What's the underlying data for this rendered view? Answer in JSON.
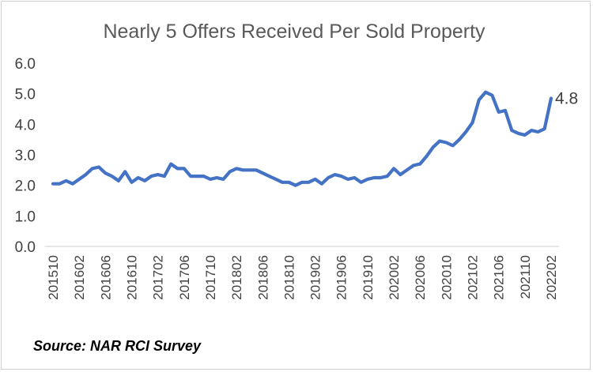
{
  "chart_data": {
    "type": "line",
    "title": "Nearly 5 Offers Received Per Sold Property",
    "xlabel": "",
    "ylabel": "",
    "ylim": [
      0,
      6
    ],
    "yticks": [
      "0.0",
      "1.0",
      "2.0",
      "3.0",
      "4.0",
      "5.0",
      "6.0"
    ],
    "xtick_labels": [
      "201510",
      "201602",
      "201606",
      "201610",
      "201702",
      "201706",
      "201710",
      "201802",
      "201806",
      "201810",
      "201902",
      "201906",
      "201910",
      "202002",
      "202006",
      "202010",
      "202102",
      "202106",
      "202110",
      "202202"
    ],
    "x": [
      "201510",
      "201511",
      "201512",
      "201601",
      "201602",
      "201603",
      "201604",
      "201605",
      "201606",
      "201607",
      "201608",
      "201609",
      "201610",
      "201611",
      "201612",
      "201701",
      "201702",
      "201703",
      "201704",
      "201705",
      "201706",
      "201707",
      "201708",
      "201709",
      "201710",
      "201711",
      "201712",
      "201801",
      "201802",
      "201803",
      "201804",
      "201805",
      "201806",
      "201807",
      "201808",
      "201809",
      "201810",
      "201811",
      "201812",
      "201901",
      "201902",
      "201903",
      "201904",
      "201905",
      "201906",
      "201907",
      "201908",
      "201909",
      "201910",
      "201911",
      "201912",
      "202001",
      "202002",
      "202003",
      "202004",
      "202005",
      "202006",
      "202007",
      "202008",
      "202009",
      "202010",
      "202011",
      "202012",
      "202101",
      "202102",
      "202103",
      "202104",
      "202105",
      "202106",
      "202107",
      "202108",
      "202109",
      "202110",
      "202111",
      "202112",
      "202201",
      "202202"
    ],
    "series": [
      {
        "values": [
          2.05,
          2.05,
          2.15,
          2.05,
          2.2,
          2.35,
          2.55,
          2.6,
          2.4,
          2.3,
          2.15,
          2.45,
          2.1,
          2.25,
          2.15,
          2.3,
          2.35,
          2.3,
          2.7,
          2.55,
          2.55,
          2.3,
          2.3,
          2.3,
          2.2,
          2.25,
          2.2,
          2.45,
          2.55,
          2.5,
          2.5,
          2.5,
          2.4,
          2.3,
          2.2,
          2.1,
          2.1,
          2.0,
          2.1,
          2.1,
          2.2,
          2.05,
          2.25,
          2.35,
          2.3,
          2.2,
          2.25,
          2.1,
          2.2,
          2.25,
          2.25,
          2.3,
          2.55,
          2.35,
          2.5,
          2.65,
          2.7,
          2.95,
          3.25,
          3.45,
          3.4,
          3.3,
          3.5,
          3.75,
          4.05,
          4.8,
          5.05,
          4.95,
          4.4,
          4.45,
          3.8,
          3.7,
          3.65,
          3.8,
          3.75,
          3.85,
          4.85
        ],
        "color": "#4472c4"
      }
    ],
    "end_label": "4.8",
    "grid": false
  },
  "footer": {
    "source": "Source: NAR RCI Survey"
  }
}
